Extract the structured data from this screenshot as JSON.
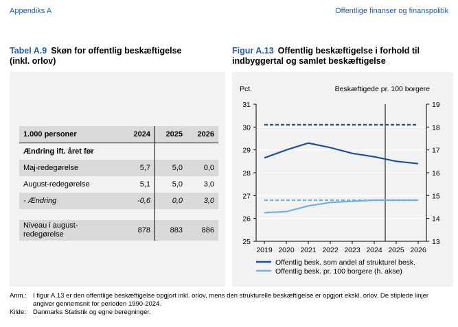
{
  "header": {
    "left": "Appendiks A",
    "right": "Offentlige finanser og finanspolitik"
  },
  "table": {
    "number": "Tabel A.9",
    "title_line1": "Skøn for offentlig beskæftigelse",
    "title_line2": "(inkl. orlov)",
    "columns": [
      "1.000 personer",
      "2024",
      "2025",
      "2026"
    ],
    "subheader": "Ændring ift. året før",
    "rows": [
      {
        "label": "Maj-redegørelse",
        "values": [
          "5,7",
          "5,0",
          "0,0"
        ]
      },
      {
        "label": "August-redegørelse",
        "values": [
          "5,1",
          "5,0",
          "3,0"
        ]
      },
      {
        "label": "- Ændring",
        "values": [
          "-0,6",
          "0,0",
          "3,0"
        ]
      }
    ],
    "level_label_line1": "Niveau i august-",
    "level_label_line2": "redegørelse",
    "level_values": [
      "878",
      "883",
      "886"
    ]
  },
  "figure": {
    "number": "Figur A.13",
    "title_line1": "Offentlig beskæftigelse i forhold til",
    "title_line2": "indbyggertal og samlet beskæftigelse"
  },
  "chart_data": {
    "type": "line",
    "x": [
      "2019",
      "2020",
      "2021",
      "2022",
      "2023",
      "2024",
      "2025",
      "2026"
    ],
    "left_axis_label": "Pct.",
    "right_axis_label": "Beskæftigede pr. 100 borgere",
    "left_ylim": [
      25,
      31
    ],
    "right_ylim": [
      13,
      19
    ],
    "left_ticks": [
      "25",
      "26",
      "27",
      "28",
      "29",
      "30",
      "31"
    ],
    "right_ticks": [
      "13",
      "14",
      "15",
      "16",
      "17",
      "18",
      "19"
    ],
    "series": [
      {
        "name": "Offentlig besk. som andel af strukturel besk.",
        "axis": "left",
        "color": "#1f4e9e",
        "values": [
          28.65,
          29.0,
          29.3,
          29.1,
          28.85,
          28.7,
          28.5,
          28.4
        ],
        "average": 30.1
      },
      {
        "name": "Offentlig besk. pr. 100 borgere (h. akse)",
        "axis": "right",
        "color": "#6fb0e4",
        "values": [
          14.25,
          14.3,
          14.55,
          14.7,
          14.75,
          14.8,
          14.8,
          14.8
        ],
        "average": 14.8
      }
    ],
    "vertical_marker_at": "2024",
    "grid": true,
    "legend_placement": "bottom"
  },
  "notes": {
    "anm_label": "Anm.:",
    "anm_text": "I figur A.13 er den offentlige beskæftigelse opgjort inkl. orlov, mens den strukturelle beskæftigelse er opgjort ekskl. orlov. De stiplede linjer angiver gennemsnit for perioden 1990-2024.",
    "kilde_label": "Kilde:",
    "kilde_text": "Danmarks Statistik og egne beregninger."
  }
}
